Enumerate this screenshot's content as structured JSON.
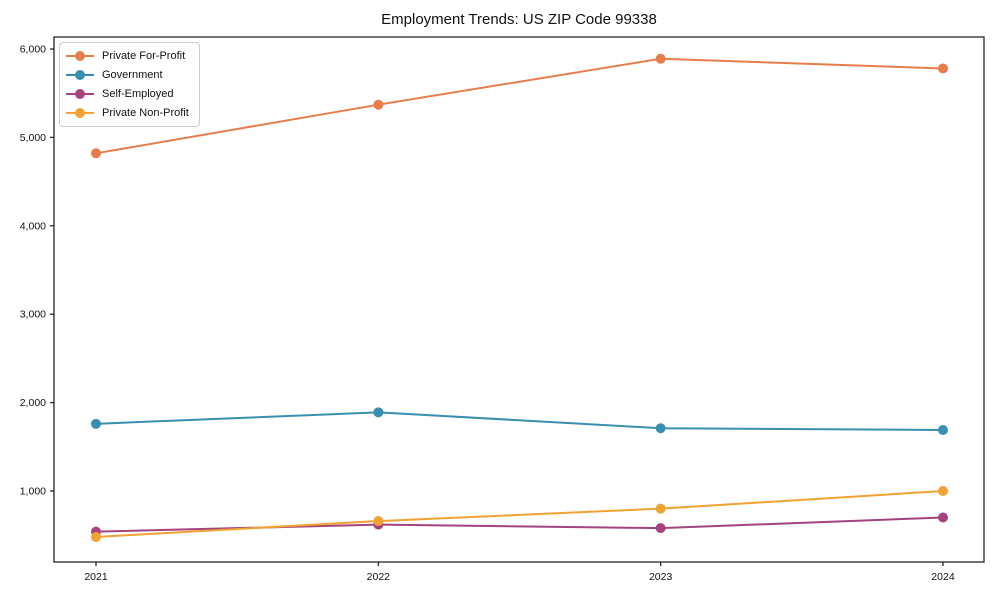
{
  "title": "Employment Trends: US ZIP Code 99338",
  "chart_data": {
    "type": "line",
    "title": "Employment Trends: US ZIP Code 99338",
    "xlabel": "",
    "ylabel": "",
    "x": [
      2021,
      2022,
      2023,
      2024
    ],
    "x_tick_labels": [
      "2021",
      "2022",
      "2023",
      "2024"
    ],
    "y_ticks": [
      1000,
      2000,
      3000,
      4000,
      5000,
      6000
    ],
    "y_tick_labels": [
      "1,000",
      "2,000",
      "3,000",
      "4,000",
      "5,000",
      "6,000"
    ],
    "ylim": [
      200,
      6130
    ],
    "grid": false,
    "legend_position": "upper left",
    "series": [
      {
        "name": "Private For-Profit",
        "color": "#e87d4b",
        "values": [
          4820,
          5370,
          5890,
          5780
        ]
      },
      {
        "name": "Government",
        "color": "#398fb0",
        "values": [
          1760,
          1890,
          1710,
          1690
        ]
      },
      {
        "name": "Self-Employed",
        "color": "#a4437f",
        "values": [
          540,
          620,
          580,
          700
        ]
      },
      {
        "name": "Private Non-Profit",
        "color": "#f0a232",
        "values": [
          480,
          660,
          800,
          1000
        ]
      }
    ],
    "axis_color": "#262626",
    "text_color": "#111111"
  }
}
